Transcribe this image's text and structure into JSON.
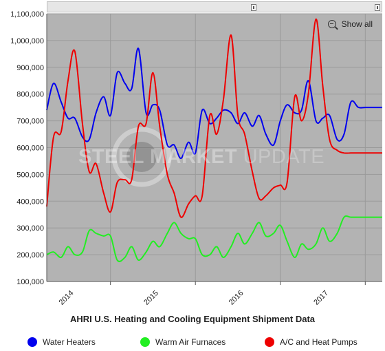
{
  "chart_data": {
    "type": "line",
    "title": "AHRI U.S. Heating and Cooling Equipment Shipment Data",
    "xlabel": "",
    "ylabel": "",
    "xlim": [
      2013.25,
      2017.2
    ],
    "ylim": [
      100000,
      1100000
    ],
    "y_ticks": [
      100000,
      200000,
      300000,
      400000,
      500000,
      600000,
      700000,
      800000,
      900000,
      1000000,
      1100000
    ],
    "y_tick_labels": [
      "100,000",
      "200,000",
      "300,000",
      "400,000",
      "500,000",
      "600,000",
      "700,000",
      "800,000",
      "900,000",
      "1,000,000",
      "1,100,000"
    ],
    "x_ticks": [
      2014,
      2015,
      2016,
      2017
    ],
    "x_tick_labels": [
      "2014",
      "2015",
      "2016",
      "2017"
    ],
    "grid": true,
    "legend_position": "bottom",
    "series": [
      {
        "name": "Water Heaters",
        "color": "#0000ee",
        "x": [
          2013.25,
          2013.33,
          2013.42,
          2013.5,
          2013.58,
          2013.67,
          2013.75,
          2013.83,
          2013.92,
          2014.0,
          2014.08,
          2014.17,
          2014.25,
          2014.33,
          2014.42,
          2014.5,
          2014.58,
          2014.67,
          2014.75,
          2014.83,
          2014.92,
          2015.0,
          2015.08,
          2015.17,
          2015.25,
          2015.33,
          2015.42,
          2015.5,
          2015.58,
          2015.67,
          2015.75,
          2015.83,
          2015.92,
          2016.0,
          2016.08,
          2016.17,
          2016.25,
          2016.33,
          2016.42,
          2016.5,
          2016.58,
          2016.67,
          2016.75,
          2016.83,
          2016.92,
          2017.0,
          2017.08,
          2017.17,
          2017.2
        ],
        "values": [
          740000,
          840000,
          770000,
          710000,
          710000,
          640000,
          630000,
          730000,
          790000,
          720000,
          880000,
          840000,
          820000,
          970000,
          730000,
          760000,
          740000,
          610000,
          610000,
          560000,
          620000,
          580000,
          740000,
          690000,
          710000,
          740000,
          730000,
          690000,
          730000,
          680000,
          720000,
          650000,
          610000,
          700000,
          760000,
          730000,
          740000,
          850000,
          700000,
          710000,
          720000,
          630000,
          650000,
          770000,
          750000,
          750000,
          750000,
          750000,
          750000
        ]
      },
      {
        "name": "Warm Air Furnaces",
        "color": "#22ee22",
        "x": [
          2013.25,
          2013.33,
          2013.42,
          2013.5,
          2013.58,
          2013.67,
          2013.75,
          2013.83,
          2013.92,
          2014.0,
          2014.08,
          2014.17,
          2014.25,
          2014.33,
          2014.42,
          2014.5,
          2014.58,
          2014.67,
          2014.75,
          2014.83,
          2014.92,
          2015.0,
          2015.08,
          2015.17,
          2015.25,
          2015.33,
          2015.42,
          2015.5,
          2015.58,
          2015.67,
          2015.75,
          2015.83,
          2015.92,
          2016.0,
          2016.08,
          2016.17,
          2016.25,
          2016.33,
          2016.42,
          2016.5,
          2016.58,
          2016.67,
          2016.75,
          2016.83,
          2016.92,
          2017.0,
          2017.08,
          2017.17,
          2017.2
        ],
        "values": [
          200000,
          210000,
          190000,
          230000,
          200000,
          210000,
          290000,
          280000,
          270000,
          270000,
          180000,
          190000,
          230000,
          180000,
          210000,
          250000,
          230000,
          280000,
          320000,
          280000,
          260000,
          260000,
          200000,
          200000,
          230000,
          190000,
          230000,
          280000,
          240000,
          280000,
          320000,
          270000,
          280000,
          310000,
          250000,
          190000,
          240000,
          220000,
          240000,
          300000,
          250000,
          280000,
          340000,
          340000,
          340000,
          340000,
          340000,
          340000,
          340000
        ]
      },
      {
        "name": "A/C and Heat Pumps",
        "color": "#ee0000",
        "x": [
          2013.25,
          2013.33,
          2013.42,
          2013.5,
          2013.58,
          2013.67,
          2013.75,
          2013.83,
          2013.92,
          2014.0,
          2014.08,
          2014.17,
          2014.25,
          2014.33,
          2014.42,
          2014.5,
          2014.58,
          2014.67,
          2014.75,
          2014.83,
          2014.92,
          2015.0,
          2015.08,
          2015.17,
          2015.25,
          2015.33,
          2015.42,
          2015.5,
          2015.58,
          2015.67,
          2015.75,
          2015.83,
          2015.92,
          2016.0,
          2016.08,
          2016.17,
          2016.25,
          2016.33,
          2016.42,
          2016.5,
          2016.58,
          2016.67,
          2016.75,
          2016.83,
          2016.92,
          2017.0,
          2017.08,
          2017.17,
          2017.2
        ],
        "values": [
          380000,
          640000,
          660000,
          850000,
          960000,
          690000,
          510000,
          540000,
          430000,
          360000,
          470000,
          480000,
          480000,
          680000,
          690000,
          880000,
          680000,
          500000,
          430000,
          340000,
          390000,
          420000,
          420000,
          720000,
          650000,
          780000,
          1020000,
          720000,
          650000,
          510000,
          410000,
          420000,
          450000,
          460000,
          470000,
          790000,
          700000,
          800000,
          1080000,
          830000,
          630000,
          590000,
          580000,
          580000,
          580000,
          580000,
          580000,
          580000,
          580000
        ]
      }
    ]
  },
  "ui": {
    "show_all_label": "Show all",
    "watermark_bold": "STEEL MARKET",
    "watermark_light": " UPDATE"
  }
}
